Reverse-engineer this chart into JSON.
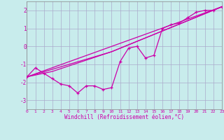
{
  "xlabel": "Windchill (Refroidissement éolien,°C)",
  "bg_color": "#c8ecec",
  "grid_color": "#aaaacc",
  "line_color": "#cc00aa",
  "xlim": [
    0,
    23
  ],
  "ylim": [
    -3.5,
    2.5
  ],
  "yticks": [
    -3,
    -2,
    -1,
    0,
    1,
    2
  ],
  "xticks": [
    0,
    1,
    2,
    3,
    4,
    5,
    6,
    7,
    8,
    9,
    10,
    11,
    12,
    13,
    14,
    15,
    16,
    17,
    18,
    19,
    20,
    21,
    22,
    23
  ],
  "xtick_labels": [
    "0",
    "1",
    "2",
    "3",
    "4",
    "5",
    "6",
    "7",
    "8",
    "9",
    "10",
    "11",
    "12",
    "13",
    "14",
    "15",
    "16",
    "17",
    "18",
    "19",
    "20",
    "21",
    "22",
    "23"
  ],
  "line1_x": [
    0,
    1,
    2,
    3,
    4,
    5,
    6,
    7,
    8,
    9,
    10,
    11,
    12,
    13,
    14,
    15,
    16,
    17,
    18,
    19,
    20,
    21,
    22,
    23
  ],
  "line1_y": [
    -1.7,
    -1.2,
    -1.5,
    -1.8,
    -2.1,
    -2.2,
    -2.6,
    -2.2,
    -2.2,
    -2.4,
    -2.3,
    -0.85,
    -0.1,
    0.0,
    -0.65,
    -0.5,
    1.0,
    1.2,
    1.3,
    1.6,
    1.9,
    2.0,
    2.0,
    2.2
  ],
  "line2_x": [
    0,
    23
  ],
  "line2_y": [
    -1.7,
    2.2
  ],
  "line3_x": [
    0,
    10,
    23
  ],
  "line3_y": [
    -1.7,
    -0.3,
    2.2
  ],
  "line4_x": [
    0,
    3,
    10,
    23
  ],
  "line4_y": [
    -1.7,
    -1.4,
    -0.3,
    2.2
  ]
}
